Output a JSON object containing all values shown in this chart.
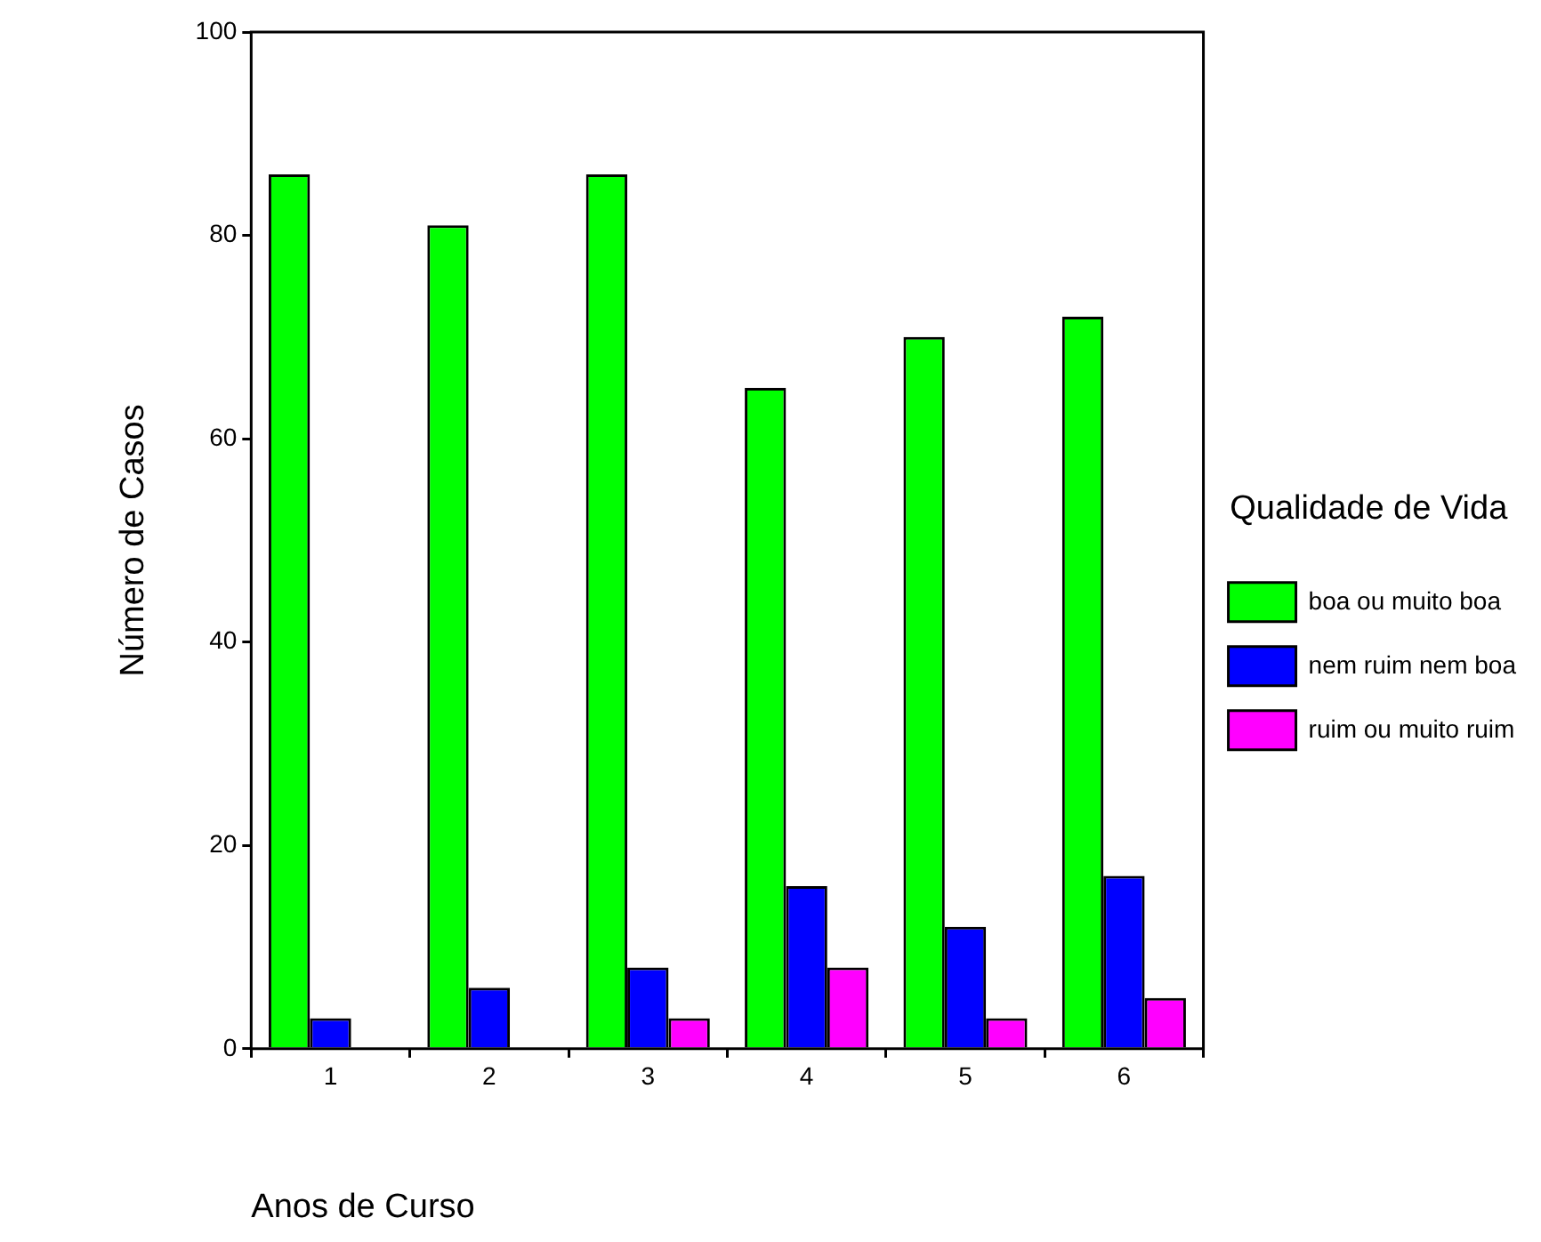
{
  "chart_data": {
    "type": "bar",
    "xlabel": "Anos de Curso",
    "ylabel": "Número de Casos",
    "legend_title": "Qualidade de Vida",
    "categories": [
      "1",
      "2",
      "3",
      "4",
      "5",
      "6"
    ],
    "series": [
      {
        "name": "boa ou muito boa",
        "color": "#00ff00",
        "values": [
          86,
          81,
          86,
          65,
          70,
          72
        ]
      },
      {
        "name": "nem ruim nem boa",
        "color": "#0000ff",
        "values": [
          3,
          6,
          8,
          16,
          12,
          17
        ]
      },
      {
        "name": "ruim ou muito ruim",
        "color": "#ff00ff",
        "values": [
          0,
          0,
          3,
          8,
          3,
          5
        ]
      }
    ],
    "ylim": [
      0,
      100
    ],
    "yticks": [
      0,
      20,
      40,
      60,
      80,
      100
    ],
    "grid": false,
    "legend": "right"
  }
}
